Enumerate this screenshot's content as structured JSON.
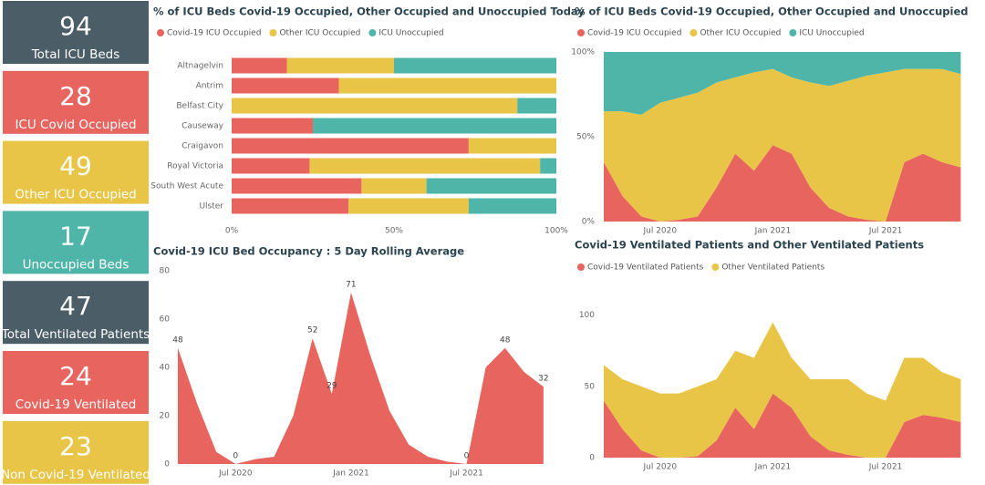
{
  "cards": [
    {
      "value": 94,
      "label": "Total ICU Beds",
      "color": "#4b5d67"
    },
    {
      "value": 28,
      "label": "ICU Covid Occupied",
      "color": "#e8645e"
    },
    {
      "value": 49,
      "label": "Other ICU Occupied",
      "color": "#e8c547"
    },
    {
      "value": 17,
      "label": "Unoccupied Beds",
      "color": "#4fb5a8"
    },
    {
      "value": 47,
      "label": "Total Ventilated Patients",
      "color": "#4b5d67"
    },
    {
      "value": 24,
      "label": "Covid-19 Ventilated",
      "color": "#e8645e"
    },
    {
      "value": 23,
      "label": "Non Covid-19 Ventilated",
      "color": "#e8c547"
    }
  ],
  "chart_data": [
    {
      "type": "bar",
      "orientation": "horizontal",
      "stacked": true,
      "title": "% of ICU Beds Covid-19 Occupied, Other Occupied and Unoccupied Today",
      "categories": [
        "Altnagelvin",
        "Antrim",
        "Belfast City",
        "Causeway",
        "Craigavon",
        "Royal Victoria",
        "South West Acute",
        "Ulster"
      ],
      "series": [
        {
          "name": "Covid-19 ICU Occupied",
          "color": "#e8645e",
          "values": [
            17,
            33,
            0,
            25,
            73,
            24,
            40,
            36
          ]
        },
        {
          "name": "Other ICU Occupied",
          "color": "#e8c547",
          "values": [
            33,
            67,
            88,
            0,
            27,
            71,
            20,
            37
          ]
        },
        {
          "name": "ICU Unoccupied",
          "color": "#4fb5a8",
          "values": [
            50,
            0,
            12,
            75,
            0,
            5,
            40,
            27
          ]
        }
      ],
      "xlim": [
        0,
        100
      ],
      "xticks": [
        {
          "value": 0,
          "label": "0%"
        },
        {
          "value": 50,
          "label": "50%"
        },
        {
          "value": 100,
          "label": "100%"
        }
      ]
    },
    {
      "type": "area",
      "stacked": true,
      "title": "% of ICU Beds Covid-19 Occupied, Other Occupied and Unoccupied",
      "x": [
        "Apr 2020",
        "May 2020",
        "Jun 2020",
        "Jul 2020",
        "Aug 2020",
        "Sep 2020",
        "Oct 2020",
        "Nov 2020",
        "Dec 2020",
        "Jan 2021",
        "Feb 2021",
        "Mar 2021",
        "Apr 2021",
        "May 2021",
        "Jun 2021",
        "Jul 2021",
        "Aug 2021",
        "Sep 2021",
        "Oct 2021",
        "Nov 2021"
      ],
      "series": [
        {
          "name": "Covid-19 ICU Occupied",
          "color": "#e8645e",
          "values": [
            35,
            15,
            3,
            0,
            1,
            3,
            20,
            40,
            30,
            45,
            40,
            20,
            8,
            3,
            1,
            0,
            35,
            40,
            35,
            32
          ]
        },
        {
          "name": "Other ICU Occupied",
          "color": "#e8c547",
          "values": [
            30,
            50,
            60,
            70,
            72,
            73,
            62,
            45,
            58,
            45,
            45,
            62,
            72,
            80,
            85,
            88,
            55,
            50,
            55,
            55
          ]
        },
        {
          "name": "ICU Unoccupied",
          "color": "#4fb5a8",
          "values": [
            35,
            35,
            37,
            30,
            27,
            24,
            18,
            15,
            12,
            10,
            15,
            18,
            20,
            17,
            14,
            12,
            10,
            10,
            10,
            13
          ]
        }
      ],
      "ylim": [
        0,
        100
      ],
      "yticks": [
        {
          "value": 0,
          "label": "0%"
        },
        {
          "value": 50,
          "label": "50%"
        },
        {
          "value": 100,
          "label": "100%"
        }
      ],
      "xticks": [
        "Jul 2020",
        "Jan 2021",
        "Jul 2021"
      ]
    },
    {
      "type": "area",
      "title": "Covid-19 ICU Bed Occupancy : 5 Day Rolling Average",
      "x": [
        "Apr 2020",
        "May 2020",
        "Jun 2020",
        "Jul 2020",
        "Aug 2020",
        "Sep 2020",
        "Oct 2020",
        "Nov 2020",
        "Dec 2020",
        "Jan 2021",
        "Feb 2021",
        "Mar 2021",
        "Apr 2021",
        "May 2021",
        "Jun 2021",
        "Jul 2021",
        "Aug 2021",
        "Sep 2021",
        "Oct 2021",
        "Nov 2021"
      ],
      "values": [
        48,
        25,
        5,
        0,
        2,
        3,
        20,
        52,
        29,
        71,
        45,
        22,
        8,
        3,
        1,
        0,
        40,
        48,
        38,
        32
      ],
      "value_labels": [
        "48",
        null,
        null,
        "0",
        null,
        null,
        null,
        "52",
        "29",
        "71",
        null,
        null,
        null,
        null,
        null,
        "0",
        null,
        "48",
        null,
        "32"
      ],
      "color": "#e8645e",
      "ylim": [
        0,
        80
      ],
      "yticks": [
        0,
        20,
        40,
        60,
        80
      ],
      "xticks": [
        "Jul 2020",
        "Jan 2021",
        "Jul 2021"
      ]
    },
    {
      "type": "area",
      "stacked": true,
      "title": "Covid-19 Ventilated Patients and Other Ventilated Patients",
      "x": [
        "Apr 2020",
        "May 2020",
        "Jun 2020",
        "Jul 2020",
        "Aug 2020",
        "Sep 2020",
        "Oct 2020",
        "Nov 2020",
        "Dec 2020",
        "Jan 2021",
        "Feb 2021",
        "Mar 2021",
        "Apr 2021",
        "May 2021",
        "Jun 2021",
        "Jul 2021",
        "Aug 2021",
        "Sep 2021",
        "Oct 2021",
        "Nov 2021"
      ],
      "series": [
        {
          "name": "Covid-19 Ventilated Patients",
          "color": "#e8645e",
          "values": [
            40,
            20,
            5,
            0,
            0,
            1,
            12,
            35,
            20,
            45,
            35,
            15,
            5,
            2,
            0,
            0,
            25,
            30,
            28,
            25
          ]
        },
        {
          "name": "Other Ventilated Patients",
          "color": "#e8c547",
          "values": [
            25,
            35,
            45,
            45,
            45,
            49,
            43,
            40,
            50,
            50,
            35,
            40,
            50,
            53,
            45,
            40,
            45,
            40,
            32,
            30
          ]
        }
      ],
      "ylim": [
        0,
        110
      ],
      "yticks": [
        0,
        50,
        100
      ],
      "xticks": [
        "Jul 2020",
        "Jan 2021",
        "Jul 2021"
      ]
    }
  ]
}
